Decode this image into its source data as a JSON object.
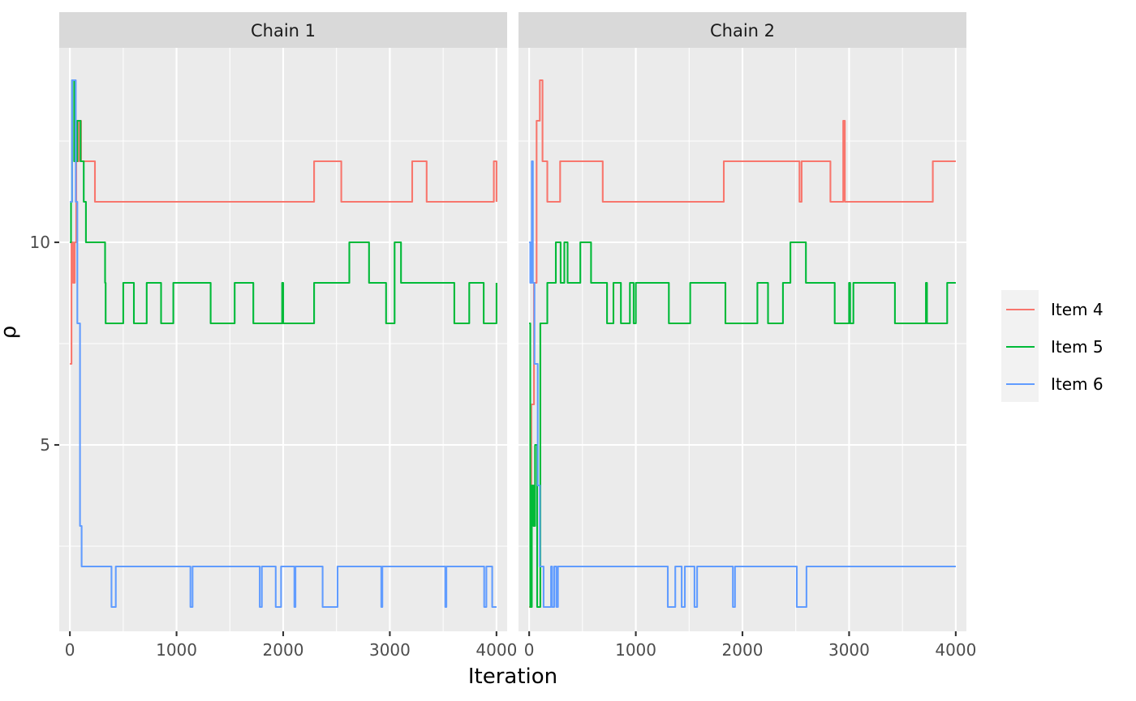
{
  "chart_data": {
    "type": "line",
    "xlabel": "Iteration",
    "ylabel": "ρ",
    "xlim": [
      -100,
      4100
    ],
    "ylim": [
      0.4,
      14.8
    ],
    "x_ticks": [
      0,
      1000,
      2000,
      3000,
      4000
    ],
    "x_tick_labels": [
      "0",
      "1000",
      "2000",
      "3000",
      "4000"
    ],
    "y_ticks": [
      5,
      10
    ],
    "y_tick_labels": [
      "5",
      "10"
    ],
    "grid": true,
    "legend_position": "right",
    "facets": [
      "Chain 1",
      "Chain 2"
    ],
    "series": [
      {
        "name": "Item 4",
        "color": "#f8766d",
        "chains": [
          [
            [
              0,
              7
            ],
            [
              15,
              10
            ],
            [
              30,
              9
            ],
            [
              45,
              10
            ],
            [
              60,
              12
            ],
            [
              85,
              13
            ],
            [
              105,
              12
            ],
            [
              235,
              11
            ],
            [
              2290,
              12
            ],
            [
              2545,
              11
            ],
            [
              3210,
              12
            ],
            [
              3345,
              11
            ],
            [
              3975,
              12
            ],
            [
              4000,
              11
            ]
          ],
          [
            [
              0,
              1
            ],
            [
              20,
              6
            ],
            [
              45,
              9
            ],
            [
              70,
              13
            ],
            [
              100,
              14
            ],
            [
              125,
              12
            ],
            [
              170,
              11
            ],
            [
              290,
              12
            ],
            [
              690,
              11
            ],
            [
              1825,
              12
            ],
            [
              2535,
              11
            ],
            [
              2555,
              12
            ],
            [
              2825,
              11
            ],
            [
              2945,
              13
            ],
            [
              2960,
              11
            ],
            [
              3785,
              12
            ],
            [
              4000,
              12
            ]
          ]
        ]
      },
      {
        "name": "Item 5",
        "color": "#00ba38",
        "chains": [
          [
            [
              0,
              10
            ],
            [
              10,
              11
            ],
            [
              20,
              14
            ],
            [
              40,
              12
            ],
            [
              70,
              13
            ],
            [
              100,
              12
            ],
            [
              130,
              11
            ],
            [
              150,
              10
            ],
            [
              330,
              9
            ],
            [
              335,
              8
            ],
            [
              500,
              9
            ],
            [
              600,
              8
            ],
            [
              720,
              9
            ],
            [
              855,
              8
            ],
            [
              970,
              9
            ],
            [
              1320,
              8
            ],
            [
              1545,
              9
            ],
            [
              1720,
              8
            ],
            [
              1990,
              9
            ],
            [
              2000,
              8
            ],
            [
              2290,
              9
            ],
            [
              2620,
              10
            ],
            [
              2805,
              9
            ],
            [
              2965,
              8
            ],
            [
              3045,
              10
            ],
            [
              3105,
              9
            ],
            [
              3605,
              8
            ],
            [
              3745,
              9
            ],
            [
              3880,
              8
            ],
            [
              4000,
              9
            ]
          ],
          [
            [
              0,
              8
            ],
            [
              10,
              1
            ],
            [
              25,
              4
            ],
            [
              40,
              3
            ],
            [
              55,
              5
            ],
            [
              75,
              1
            ],
            [
              105,
              8
            ],
            [
              170,
              9
            ],
            [
              250,
              10
            ],
            [
              295,
              9
            ],
            [
              330,
              10
            ],
            [
              360,
              9
            ],
            [
              480,
              10
            ],
            [
              580,
              9
            ],
            [
              730,
              8
            ],
            [
              790,
              9
            ],
            [
              860,
              8
            ],
            [
              945,
              9
            ],
            [
              980,
              8
            ],
            [
              1000,
              9
            ],
            [
              1310,
              8
            ],
            [
              1510,
              9
            ],
            [
              1840,
              8
            ],
            [
              2140,
              9
            ],
            [
              2240,
              8
            ],
            [
              2380,
              9
            ],
            [
              2450,
              10
            ],
            [
              2595,
              9
            ],
            [
              2865,
              8
            ],
            [
              3000,
              9
            ],
            [
              3010,
              8
            ],
            [
              3040,
              9
            ],
            [
              3430,
              8
            ],
            [
              3720,
              9
            ],
            [
              3730,
              8
            ],
            [
              3920,
              9
            ],
            [
              4000,
              9
            ]
          ]
        ]
      },
      {
        "name": "Item 6",
        "color": "#619cff",
        "chains": [
          [
            [
              0,
              11
            ],
            [
              20,
              14
            ],
            [
              55,
              11
            ],
            [
              70,
              8
            ],
            [
              95,
              3
            ],
            [
              110,
              2
            ],
            [
              390,
              1
            ],
            [
              430,
              2
            ],
            [
              1130,
              1
            ],
            [
              1150,
              2
            ],
            [
              1780,
              1
            ],
            [
              1800,
              2
            ],
            [
              1930,
              1
            ],
            [
              1980,
              2
            ],
            [
              2105,
              1
            ],
            [
              2115,
              2
            ],
            [
              2370,
              1
            ],
            [
              2510,
              2
            ],
            [
              2920,
              1
            ],
            [
              2930,
              2
            ],
            [
              3520,
              1
            ],
            [
              3530,
              2
            ],
            [
              3885,
              1
            ],
            [
              3905,
              2
            ],
            [
              3960,
              1
            ],
            [
              4000,
              1
            ]
          ],
          [
            [
              0,
              10
            ],
            [
              10,
              9
            ],
            [
              25,
              12
            ],
            [
              35,
              9
            ],
            [
              50,
              7
            ],
            [
              80,
              4
            ],
            [
              100,
              2
            ],
            [
              135,
              1
            ],
            [
              205,
              2
            ],
            [
              215,
              1
            ],
            [
              235,
              2
            ],
            [
              255,
              1
            ],
            [
              270,
              2
            ],
            [
              1300,
              1
            ],
            [
              1370,
              2
            ],
            [
              1430,
              1
            ],
            [
              1460,
              2
            ],
            [
              1550,
              1
            ],
            [
              1575,
              2
            ],
            [
              1910,
              1
            ],
            [
              1930,
              2
            ],
            [
              2510,
              1
            ],
            [
              2600,
              2
            ],
            [
              4000,
              2
            ]
          ]
        ]
      }
    ]
  }
}
